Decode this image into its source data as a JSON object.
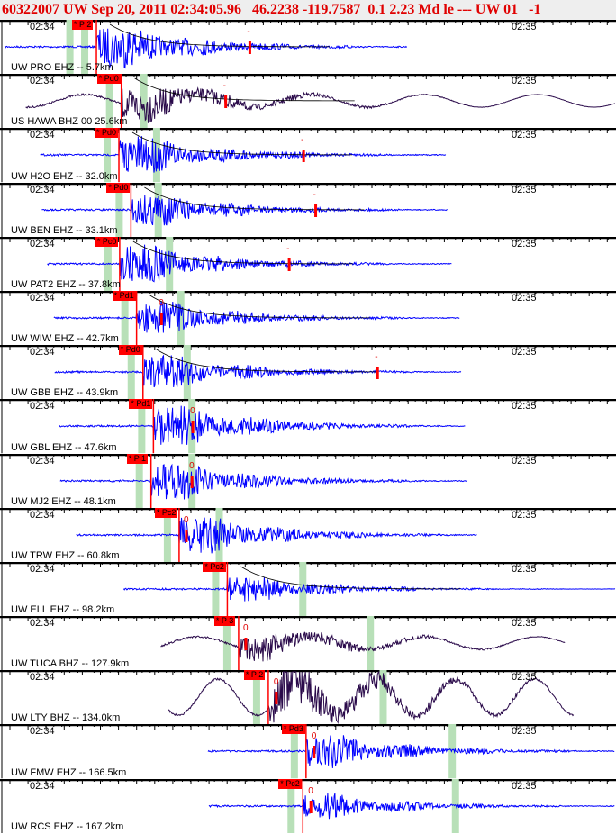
{
  "header": {
    "title": "60322007 UW Sep 20, 2011 02:34:05.96   46.2238 -119.7587  0.1 2.23 Md le --- UW 01   -1"
  },
  "time_labels": {
    "left": "02:34",
    "right": "02:35"
  },
  "colors": {
    "short_period": "#0000ff",
    "broadband": "#2a0a4a",
    "pick": "#ff0000",
    "phase_window": "#b8e0b8"
  },
  "traces": [
    {
      "label": "UW PRO EHZ -- 5.7km",
      "pick": "* P 2",
      "pick_s": 8.3,
      "s_s": 5.0,
      "start_s": -3.1,
      "end_s": 47,
      "coda_s": 27.4,
      "code": "-",
      "type": "EHZ",
      "amp": 1.0
    },
    {
      "label": "US HAWA BHZ 00 25.6km",
      "pick": "* Pd0",
      "pick_s": 11.4,
      "s_s": 14.2,
      "start_s": -0.5,
      "end_s": 73,
      "coda_s": 24.4,
      "code": "-",
      "type": "BHZ",
      "amp": 0.8
    },
    {
      "label": "UW H2O EHZ -- 32.0km",
      "pick": "* Pd0",
      "pick_s": 11.1,
      "s_s": 15.8,
      "start_s": 1.3,
      "end_s": 51.8,
      "coda_s": 34.1,
      "code": "-",
      "type": "EHZ",
      "amp": 0.9
    },
    {
      "label": "UW BEN EHZ -- 33.1km",
      "pick": "* Pd0",
      "pick_s": 12.6,
      "s_s": 16.0,
      "start_s": 1.5,
      "end_s": 52,
      "coda_s": 35.6,
      "code": "-",
      "type": "EHZ",
      "amp": 0.8
    },
    {
      "label": "UW PAT2 EHZ -- 37.8km",
      "pick": "* Pc0",
      "pick_s": 11.2,
      "s_s": 17.4,
      "start_s": 2.2,
      "end_s": 52.6,
      "coda_s": 32.3,
      "code": "-",
      "type": "EHZ",
      "amp": 0.9
    },
    {
      "label": "UW WIW EHZ -- 42.7km",
      "pick": "* Pd1",
      "pick_s": 13.3,
      "s_s": 18.8,
      "start_s": 3.0,
      "end_s": 53.5,
      "coda_s": 16.4,
      "code": "0",
      "type": "EHZ",
      "amp": 0.8
    },
    {
      "label": "UW GBB EHZ -- 43.9km",
      "pick": "* Pd0",
      "pick_s": 14.1,
      "s_s": 19.6,
      "start_s": 3.1,
      "end_s": 53.7,
      "coda_s": 43.3,
      "code": "-",
      "type": "EHZ",
      "amp": 0.8
    },
    {
      "label": "UW GBL EHZ -- 47.6km",
      "pick": "* Pd1",
      "pick_s": 15.4,
      "s_s": 20.2,
      "start_s": 3.7,
      "end_s": 54.2,
      "coda_s": 20.3,
      "code": "0",
      "type": "EHZ",
      "amp": 1.0
    },
    {
      "label": "UW MJ2 EHZ -- 48.1km",
      "pick": "* P 1",
      "pick_s": 15.1,
      "s_s": 20.2,
      "start_s": 3.8,
      "end_s": 54.5,
      "coda_s": 20.2,
      "code": "0",
      "type": "EHZ",
      "amp": 0.9
    },
    {
      "label": "UW TRW EHZ -- 60.8km",
      "pick": "* Pc2",
      "pick_s": 18.6,
      "s_s": 23.6,
      "start_s": 5.8,
      "end_s": 55.7,
      "coda_s": 19.5,
      "code": "0",
      "type": "EHZ",
      "amp": 0.9
    },
    {
      "label": "UW ELL EHZ -- 98.2km",
      "pick": "* Pc2",
      "pick_s": 24.6,
      "s_s": 34.0,
      "start_s": 11.7,
      "end_s": 73,
      "coda_s": null,
      "code": "",
      "type": "EHZ",
      "amp": 0.6
    },
    {
      "label": "UW TUCA BHZ -- 127.9km",
      "pick": "* P 3",
      "pick_s": 26.0,
      "s_s": 42.4,
      "start_s": 16.3,
      "end_s": 66.7,
      "coda_s": 26.9,
      "code": "0",
      "type": "BHZ",
      "amp": 0.6
    },
    {
      "label": "UW LTY BHZ -- 134.0km",
      "pick": "* P 2",
      "pick_s": 29.7,
      "s_s": 44.0,
      "start_s": 17.2,
      "end_s": 67.7,
      "coda_s": 30.7,
      "code": "0",
      "type": "BHZ",
      "amp": 1.2
    },
    {
      "label": "UW FMW EHZ -- 166.5km",
      "pick": "* Pd3",
      "pick_s": 34.4,
      "s_s": 52.6,
      "start_s": 22.2,
      "end_s": 73,
      "coda_s": 35.4,
      "code": "0",
      "type": "EHZ",
      "amp": 0.8
    },
    {
      "label": "UW RCS EHZ -- 167.2km",
      "pick": "* Pc2",
      "pick_s": 34.0,
      "s_s": 53.0,
      "start_s": 22.3,
      "end_s": 73,
      "coda_s": 35.0,
      "code": "0",
      "type": "EHZ",
      "amp": 0.6
    }
  ]
}
